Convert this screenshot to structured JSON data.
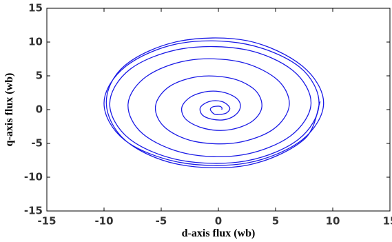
{
  "chart_data": {
    "type": "line",
    "xlabel": "d-axis flux (wb)",
    "ylabel": "q-axis flux (wb)",
    "xlim": [
      -15,
      15
    ],
    "ylim": [
      -15,
      15
    ],
    "xticks": [
      -15,
      -10,
      -5,
      0,
      5,
      10,
      15
    ],
    "yticks": [
      -15,
      -10,
      -5,
      0,
      5,
      10,
      15
    ],
    "grid": false,
    "series": [
      {
        "color": "#1a1ae6",
        "x": [
          0.3,
          0.3,
          0.1,
          -0.2,
          -0.5,
          -0.7,
          -0.6,
          -0.3,
          0.2,
          0.7,
          1.0,
          0.8,
          0.3,
          -0.5,
          -1.2,
          -1.6,
          -1.4,
          -0.6,
          0.5,
          1.4,
          1.9,
          1.7,
          0.6,
          -0.9,
          -2.4,
          -3.2,
          -2.8,
          -1.2,
          0.9,
          2.9,
          3.8,
          3.2,
          1.2,
          -1.7,
          -4.3,
          -5.5,
          -4.7,
          -2.1,
          1.6,
          4.8,
          6.2,
          5.1,
          1.8,
          -2.6,
          -6.3,
          -7.9,
          -6.6,
          -2.8,
          2.1,
          6.3,
          8.1,
          6.5,
          2.3,
          -3.2,
          -7.7,
          -9.5,
          -7.8,
          -3.3,
          2.4,
          7.0,
          8.8,
          7.1,
          2.4,
          -3.4,
          -8.1,
          -10.0,
          -8.2,
          -3.4,
          2.5,
          7.3,
          9.2,
          7.3,
          2.5,
          -3.5,
          -8.2,
          -9.8,
          -8.1,
          -3.5,
          2.6,
          7.5,
          8.9
        ],
        "values": [
          0.0,
          0.3,
          0.5,
          0.5,
          0.4,
          0.1,
          -0.3,
          -0.7,
          -0.7,
          -0.5,
          0.1,
          0.7,
          1.2,
          1.3,
          0.9,
          0.2,
          -0.8,
          -1.4,
          -1.5,
          -0.9,
          0.2,
          1.5,
          2.5,
          2.7,
          1.9,
          0.3,
          -1.5,
          -2.8,
          -3.0,
          -1.8,
          0.4,
          2.9,
          4.6,
          4.9,
          3.4,
          0.5,
          -2.6,
          -4.7,
          -4.9,
          -2.9,
          0.7,
          4.5,
          7.1,
          7.3,
          4.9,
          0.8,
          -3.6,
          -6.5,
          -6.7,
          -3.9,
          0.9,
          5.8,
          8.9,
          9.0,
          6.0,
          0.9,
          -4.3,
          -7.5,
          -7.6,
          -4.4,
          0.9,
          6.3,
          9.7,
          9.8,
          6.4,
          1.0,
          -4.5,
          -7.8,
          -7.9,
          -4.5,
          1.0,
          6.5,
          10.2,
          10.1,
          6.5,
          1.0,
          -4.6,
          -8.1,
          -8.2,
          -4.4,
          1.2
        ]
      }
    ]
  }
}
